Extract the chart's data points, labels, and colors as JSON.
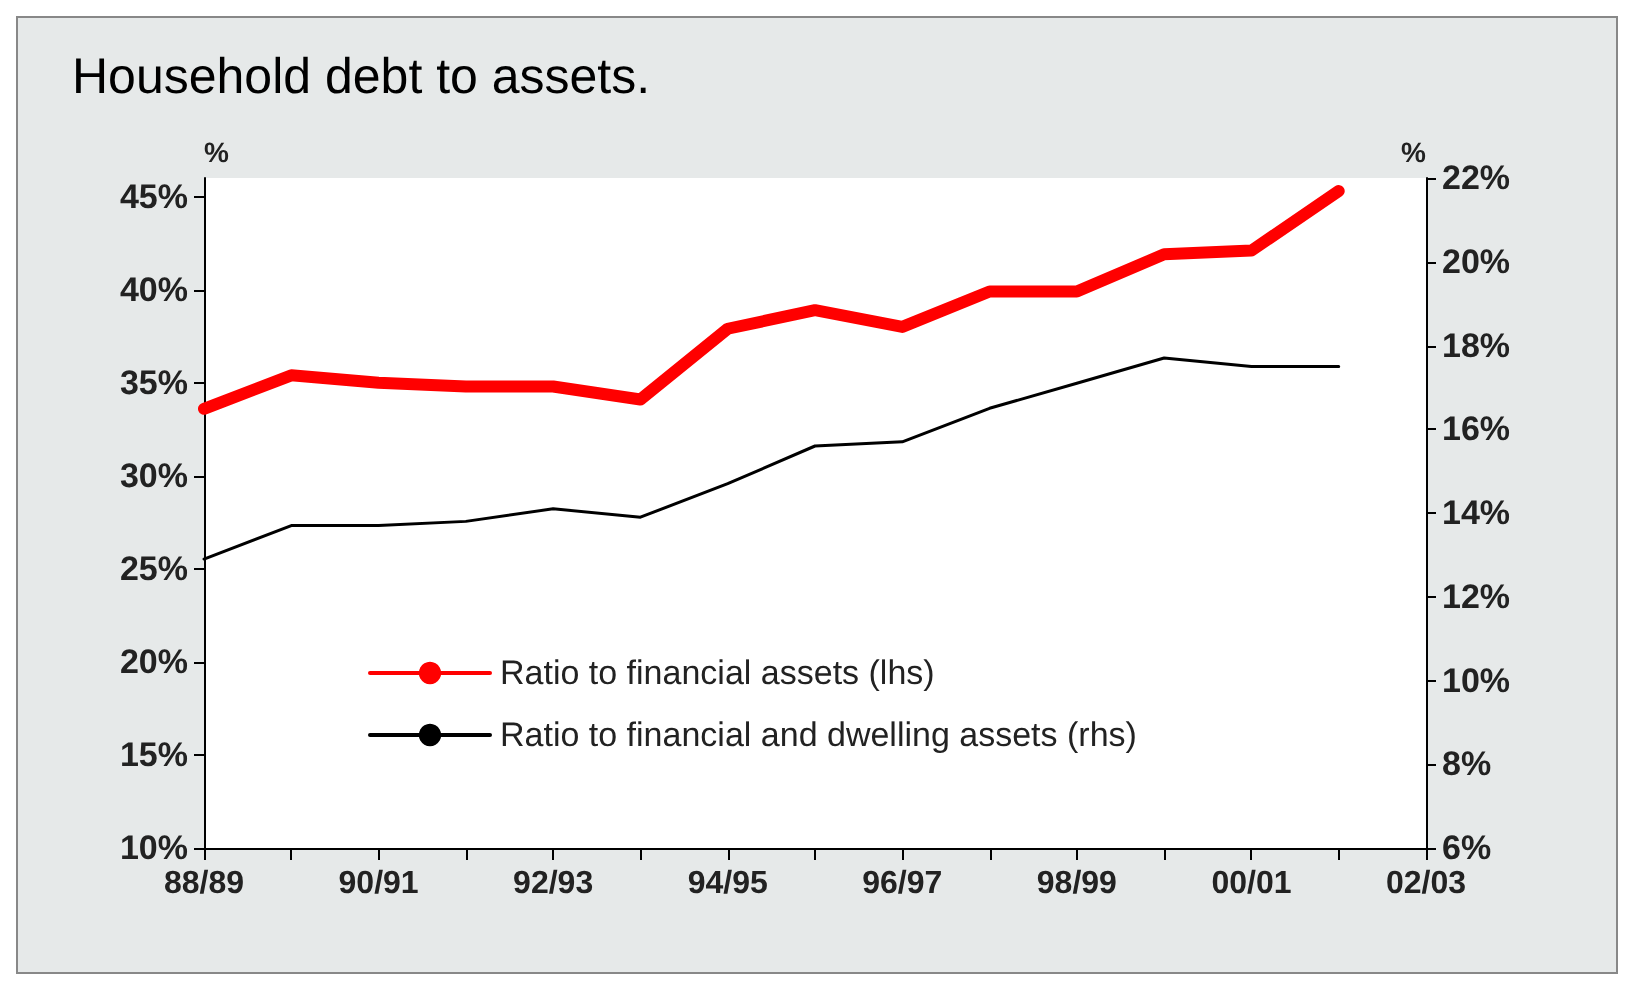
{
  "chart_data": {
    "type": "line",
    "title": "Household debt to assets.",
    "ylabel": "%",
    "y2label": "%",
    "categories": [
      "88/89",
      null,
      "90/91",
      null,
      "92/93",
      null,
      "94/95",
      null,
      "96/97",
      null,
      "98/99",
      null,
      "00/01",
      null,
      "02/03"
    ],
    "ylim": [
      10,
      46
    ],
    "yticks": [
      {
        "value": 10,
        "label": "10%"
      },
      {
        "value": 15,
        "label": "15%"
      },
      {
        "value": 20,
        "label": "20%"
      },
      {
        "value": 25,
        "label": "25%"
      },
      {
        "value": 30,
        "label": "30%"
      },
      {
        "value": 35,
        "label": "35%"
      },
      {
        "value": 40,
        "label": "40%"
      },
      {
        "value": 45,
        "label": "45%"
      }
    ],
    "y2lim": [
      6,
      22
    ],
    "y2ticks": [
      {
        "value": 6,
        "label": "6%"
      },
      {
        "value": 8,
        "label": "8%"
      },
      {
        "value": 10,
        "label": "10%"
      },
      {
        "value": 12,
        "label": "12%"
      },
      {
        "value": 14,
        "label": "14%"
      },
      {
        "value": 16,
        "label": "16%"
      },
      {
        "value": 18,
        "label": "18%"
      },
      {
        "value": 20,
        "label": "20%"
      },
      {
        "value": 22,
        "label": "22%"
      }
    ],
    "series": [
      {
        "name": "Ratio to financial assets (lhs)",
        "color": "#ff0000",
        "values": [
          33.6,
          35.4,
          35.0,
          34.8,
          34.8,
          34.1,
          37.9,
          38.9,
          38.0,
          39.9,
          39.9,
          41.9,
          42.1,
          45.3,
          null
        ]
      },
      {
        "name": "Ratio to financial and dwelling assets (rhs)",
        "color": "#000000",
        "axis": "y2",
        "values": [
          12.9,
          13.7,
          13.7,
          13.8,
          14.1,
          13.9,
          14.7,
          15.6,
          15.7,
          16.5,
          17.1,
          17.7,
          17.5,
          17.5,
          null
        ]
      }
    ],
    "legend": "bottom",
    "grid": false,
    "marker": "none",
    "line_style": "solid"
  }
}
